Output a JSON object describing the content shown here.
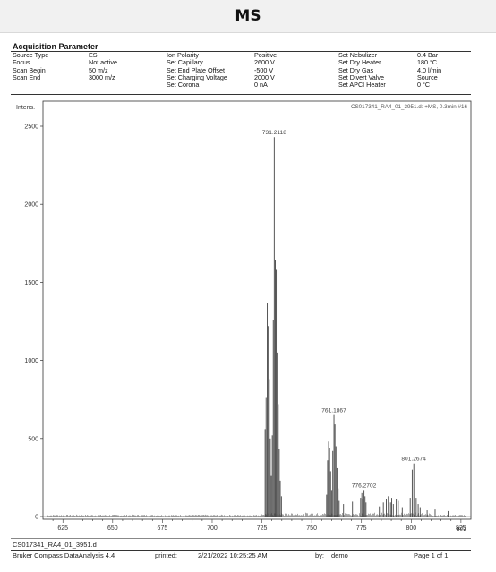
{
  "page_title": "MS",
  "acquisition": {
    "section_title": "Acquisition Parameter",
    "col1": [
      {
        "label": "Source Type",
        "value": "ESI"
      },
      {
        "label": "Focus",
        "value": "Not active"
      },
      {
        "label": "Scan Begin",
        "value": "50 m/z"
      },
      {
        "label": "Scan End",
        "value": "3000 m/z"
      }
    ],
    "col2": [
      {
        "label": "Ion Polarity",
        "value": "Positive"
      },
      {
        "label": "Set Capillary",
        "value": "2600 V"
      },
      {
        "label": "Set End Plate Offset",
        "value": "-500 V"
      },
      {
        "label": "Set Charging Voltage",
        "value": "2000 V"
      },
      {
        "label": "Set Corona",
        "value": "0 nA"
      }
    ],
    "col3": [
      {
        "label": "Set Nebulizer",
        "value": "0.4 Bar"
      },
      {
        "label": "Set Dry Heater",
        "value": "180 °C"
      },
      {
        "label": "Set Dry Gas",
        "value": "4.0 l/min"
      },
      {
        "label": "Set Divert Valve",
        "value": "Source"
      },
      {
        "label": "Set APCI Heater",
        "value": "0 °C"
      }
    ]
  },
  "chart_data": {
    "type": "bar",
    "ylabel": "Intens.",
    "xlabel": "m/z",
    "header_right": "CS017341_RA4_01_3951.d: +MS, 0.3min #16",
    "xlim": [
      615,
      830
    ],
    "ylim": [
      0,
      2600
    ],
    "xticks": [
      625,
      650,
      675,
      700,
      725,
      750,
      775,
      800,
      825
    ],
    "yticks": [
      0,
      500,
      1000,
      1500,
      2000,
      2500
    ],
    "peaks": [
      [
        726.6,
        560
      ],
      [
        727.1,
        760
      ],
      [
        727.7,
        1370
      ],
      [
        728.2,
        1220
      ],
      [
        728.7,
        880
      ],
      [
        729.2,
        500
      ],
      [
        729.7,
        260
      ],
      [
        730.2,
        520
      ],
      [
        730.7,
        1260
      ],
      [
        731.2,
        2430
      ],
      [
        731.7,
        1640
      ],
      [
        732.2,
        1580
      ],
      [
        732.7,
        1050
      ],
      [
        733.2,
        720
      ],
      [
        733.7,
        430
      ],
      [
        734.2,
        230
      ],
      [
        734.8,
        130
      ],
      [
        757.5,
        140
      ],
      [
        758.0,
        360
      ],
      [
        758.5,
        480
      ],
      [
        759.0,
        440
      ],
      [
        759.5,
        290
      ],
      [
        760.0,
        170
      ],
      [
        760.6,
        420
      ],
      [
        761.2,
        650
      ],
      [
        761.7,
        590
      ],
      [
        762.2,
        450
      ],
      [
        762.7,
        310
      ],
      [
        763.3,
        180
      ],
      [
        763.8,
        100
      ],
      [
        766.0,
        80
      ],
      [
        770.5,
        95
      ],
      [
        774.6,
        120
      ],
      [
        775.2,
        150
      ],
      [
        775.7,
        110
      ],
      [
        776.3,
        170
      ],
      [
        776.8,
        130
      ],
      [
        777.3,
        90
      ],
      [
        784.0,
        65
      ],
      [
        786.0,
        90
      ],
      [
        787.5,
        110
      ],
      [
        788.5,
        130
      ],
      [
        789.6,
        90
      ],
      [
        790.2,
        120
      ],
      [
        791.0,
        80
      ],
      [
        792.5,
        110
      ],
      [
        793.5,
        100
      ],
      [
        795.5,
        60
      ],
      [
        799.5,
        120
      ],
      [
        800.5,
        300
      ],
      [
        801.3,
        340
      ],
      [
        801.9,
        200
      ],
      [
        802.5,
        120
      ],
      [
        803.5,
        80
      ],
      [
        804.5,
        60
      ],
      [
        808.0,
        40
      ],
      [
        812.0,
        45
      ],
      [
        818.5,
        35
      ]
    ],
    "peak_labels": [
      {
        "x": 731.2118,
        "y": 2430,
        "text": "731.2118"
      },
      {
        "x": 761.1867,
        "y": 650,
        "text": "761.1867"
      },
      {
        "x": 776.2702,
        "y": 170,
        "text": "776.2702"
      },
      {
        "x": 801.2674,
        "y": 340,
        "text": "801.2674"
      }
    ]
  },
  "footer": {
    "filename": "CS017341_RA4_01_3951.d",
    "software": "Bruker Compass DataAnalysis 4.4",
    "printed_label": "printed:",
    "printed_value": "2/21/2022 10:25:25 AM",
    "by_label": "by:",
    "by_value": "demo",
    "page": "Page 1 of 1"
  }
}
